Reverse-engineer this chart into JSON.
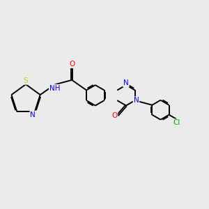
{
  "background_color": "#ebebeb",
  "bond_color": "#000000",
  "figsize": [
    3.0,
    3.0
  ],
  "dpi": 100,
  "atom_colors": {
    "N": "#0000ff",
    "O": "#ff0000",
    "S": "#cccc00",
    "Cl": "#00aa00",
    "C": "#000000",
    "H": "#808080"
  },
  "font_size": 7.5,
  "lw": 1.4
}
